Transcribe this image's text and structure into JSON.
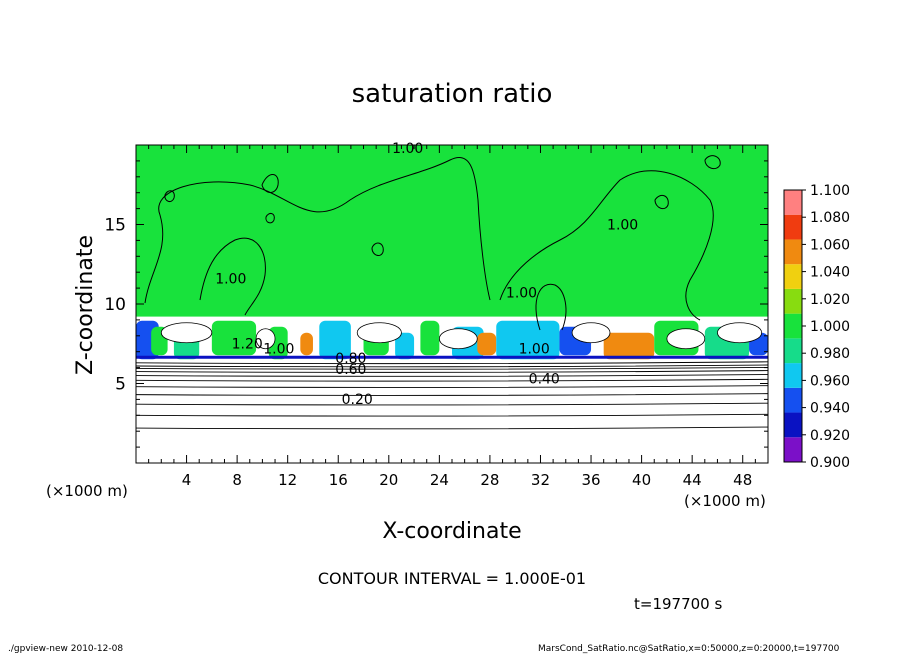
{
  "chart_data": {
    "type": "heatmap",
    "title": "saturation ratio",
    "xlabel": "X-coordinate",
    "ylabel": "Z-coordinate",
    "x_unit_left": "(×1000 m)",
    "x_unit_right": "(×1000 m)",
    "xlim": [
      0,
      50
    ],
    "ylim": [
      0,
      20
    ],
    "x_ticks": [
      4,
      8,
      12,
      16,
      20,
      24,
      28,
      32,
      36,
      40,
      44,
      48
    ],
    "y_ticks": [
      5,
      10,
      15
    ],
    "colorbar": {
      "levels": [
        0.9,
        0.92,
        0.94,
        0.96,
        0.98,
        1.0,
        1.02,
        1.04,
        1.06,
        1.08,
        1.1
      ],
      "labels": [
        "0.900",
        "0.920",
        "0.940",
        "0.960",
        "0.980",
        "1.000",
        "1.020",
        "1.040",
        "1.060",
        "1.080",
        "1.100"
      ],
      "colors": [
        "#7b10c8",
        "#0a12c2",
        "#1550f0",
        "#10c8f0",
        "#16dc8a",
        "#18e23c",
        "#88dc10",
        "#f0d010",
        "#f08a10",
        "#f03c10",
        "#ff8080"
      ]
    },
    "regions": {
      "upper_layer_value": 1.0,
      "upper_layer_z_range": [
        9.2,
        20
      ],
      "cloud_layer_z_range": [
        6.4,
        9.2
      ],
      "lower_layer_z_range": [
        0,
        6.4
      ]
    },
    "contour_labels": [
      {
        "text": "1.00",
        "x": 21.5,
        "z": 19.5
      },
      {
        "text": "1.00",
        "x": 7.5,
        "z": 11.3
      },
      {
        "text": "1.00",
        "x": 38.5,
        "z": 14.7
      },
      {
        "text": "1.00",
        "x": 30.5,
        "z": 10.4
      },
      {
        "text": "1.20",
        "x": 8.8,
        "z": 7.2
      },
      {
        "text": "1.00",
        "x": 11.3,
        "z": 6.9
      },
      {
        "text": "0.80",
        "x": 17.0,
        "z": 6.3
      },
      {
        "text": "0.60",
        "x": 17.0,
        "z": 5.6
      },
      {
        "text": "1.00",
        "x": 31.5,
        "z": 6.9
      },
      {
        "text": "0.40",
        "x": 32.3,
        "z": 5.0
      },
      {
        "text": "0.20",
        "x": 17.5,
        "z": 3.7
      }
    ],
    "contour_interval": "CONTOUR INTERVAL = 1.000E-01",
    "time": "t=197700 s"
  },
  "footer": {
    "left": "./gpview-new  2010-12-08",
    "right": "MarsCond_SatRatio.nc@SatRatio,x=0:50000,z=0:20000,t=197700"
  }
}
